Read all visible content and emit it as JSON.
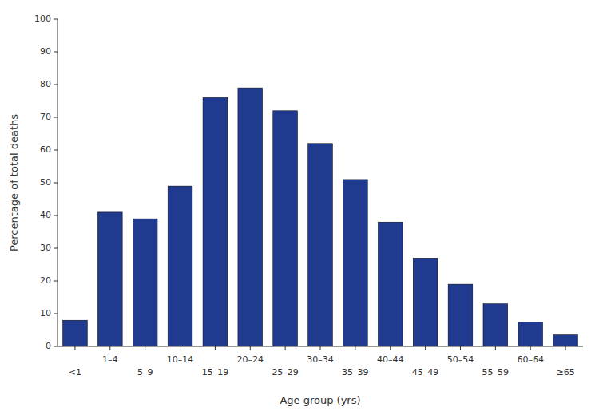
{
  "chart_data": {
    "type": "bar",
    "categories": [
      "<1",
      "1–4",
      "5–9",
      "10–14",
      "15–19",
      "20–24",
      "25–29",
      "30–34",
      "35–39",
      "40–44",
      "45–49",
      "50–54",
      "55–59",
      "60–64",
      "≥65"
    ],
    "values": [
      8,
      41,
      39,
      49,
      76,
      79,
      72,
      62,
      51,
      38,
      27,
      19,
      13,
      7.5,
      3.5
    ],
    "color": "#1f3a8f",
    "xlabel": "Age group (yrs)",
    "ylabel": "Percentage of total deaths",
    "ylim": [
      0,
      100
    ],
    "yticks": [
      0,
      10,
      20,
      30,
      40,
      50,
      60,
      70,
      80,
      90,
      100
    ],
    "grid": false
  }
}
